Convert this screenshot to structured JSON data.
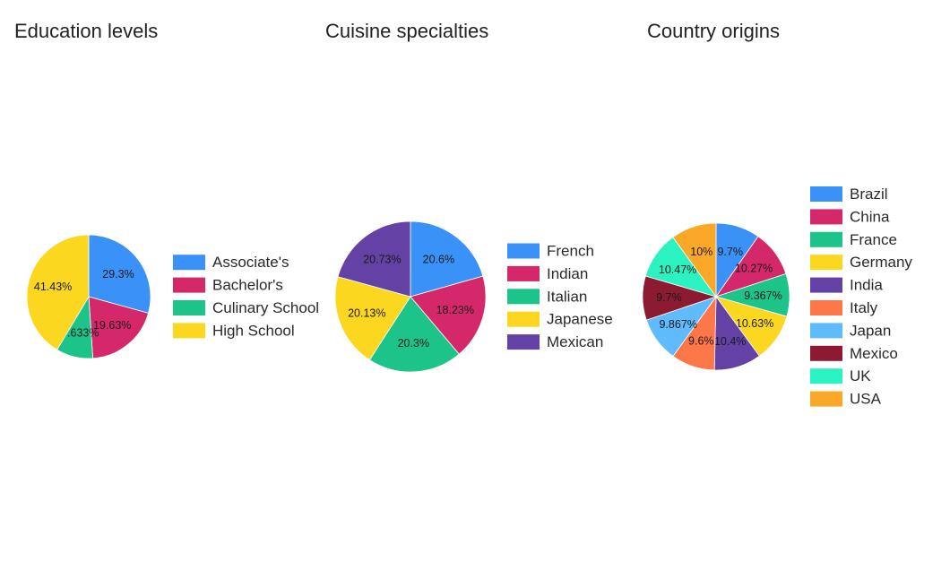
{
  "chart_data": [
    {
      "type": "pie",
      "title": "Education levels",
      "categories": [
        "Associate's",
        "Bachelor's",
        "Culinary School",
        "High School"
      ],
      "values": [
        29.3,
        19.63,
        9.633,
        41.43
      ],
      "labels": [
        "29.3%",
        "19.63%",
        "9.633%",
        "41.43%"
      ],
      "colors": [
        "#3a91f8",
        "#d4286a",
        "#1dc48a",
        "#fcd71f"
      ],
      "legend_position": "right"
    },
    {
      "type": "pie",
      "title": "Cuisine specialties",
      "categories": [
        "French",
        "Indian",
        "Italian",
        "Japanese",
        "Mexican"
      ],
      "values": [
        20.6,
        18.23,
        20.3,
        20.13,
        20.73
      ],
      "labels": [
        "20.6%",
        "18.23%",
        "20.3%",
        "20.13%",
        "20.73%"
      ],
      "colors": [
        "#3a91f8",
        "#d4286a",
        "#1dc48a",
        "#fcd71f",
        "#6441a5"
      ],
      "legend_position": "right"
    },
    {
      "type": "pie",
      "title": "Country origins",
      "categories": [
        "Brazil",
        "China",
        "France",
        "Germany",
        "India",
        "Italy",
        "Japan",
        "Mexico",
        "UK",
        "USA"
      ],
      "values": [
        9.7,
        10.27,
        9.367,
        10.63,
        10.4,
        9.6,
        9.867,
        9.7,
        10.47,
        10
      ],
      "labels": [
        "9.7%",
        "10.27%",
        "9.367%",
        "10.63%",
        "10.4%",
        "9.6%",
        "9.867%",
        "9.7%",
        "10.47%",
        "10%"
      ],
      "colors": [
        "#3a91f8",
        "#d4286a",
        "#1dc48a",
        "#fcd71f",
        "#6441a5",
        "#fd7748",
        "#5fbbfc",
        "#8c1a31",
        "#2af2c1",
        "#fba727"
      ],
      "legend_position": "right"
    }
  ]
}
